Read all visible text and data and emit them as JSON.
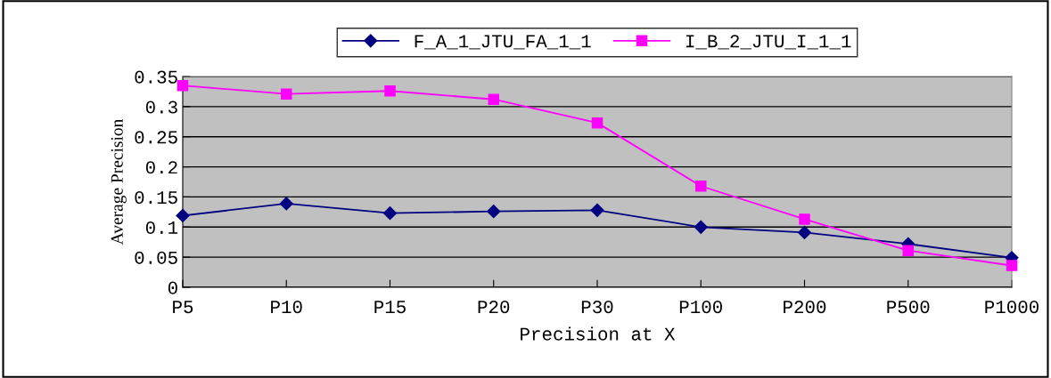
{
  "chart_data": {
    "type": "line",
    "xlabel": "Precision at X",
    "ylabel": "Average Precision",
    "categories": [
      "P5",
      "P10",
      "P15",
      "P20",
      "P30",
      "P100",
      "P200",
      "P500",
      "P1000"
    ],
    "series": [
      {
        "name": "F_A_1_JTU_FA_1_1",
        "color": "#000080",
        "marker": "diamond",
        "values": [
          0.119,
          0.139,
          0.123,
          0.126,
          0.128,
          0.1,
          0.091,
          0.072,
          0.049
        ]
      },
      {
        "name": "I_B_2_JTU_I_1_1",
        "color": "#ff00ff",
        "marker": "square",
        "values": [
          0.335,
          0.321,
          0.326,
          0.312,
          0.273,
          0.168,
          0.113,
          0.061,
          0.036
        ]
      }
    ],
    "ylim": [
      0,
      0.35
    ],
    "yticks": [
      0,
      0.05,
      0.1,
      0.15,
      0.2,
      0.25,
      0.3,
      0.35
    ],
    "grid": "y",
    "legend": "top"
  }
}
